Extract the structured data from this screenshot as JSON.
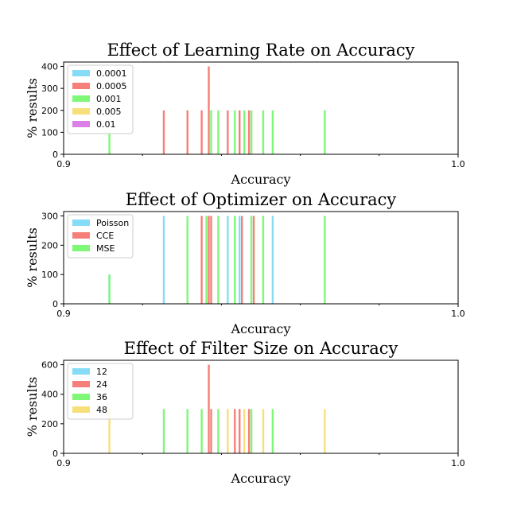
{
  "chart_data": [
    {
      "type": "bar",
      "title": "Effect of Learning Rate on Accuracy",
      "xlabel": "Accuracy",
      "ylabel": "% results",
      "xlim": [
        0.9,
        1.0
      ],
      "ylim": [
        0,
        420
      ],
      "xticks": [
        "0.9",
        "1.0"
      ],
      "yticks": [
        0,
        100,
        200,
        300,
        400
      ],
      "legend_position": "top-left",
      "series": [
        {
          "name": "0.0001",
          "color": "#86dcf7",
          "points": []
        },
        {
          "name": "0.0005",
          "color": "#f77f79",
          "points": [
            [
              0.9254,
              200
            ],
            [
              0.9314,
              200
            ],
            [
              0.935,
              200
            ],
            [
              0.9368,
              400
            ],
            [
              0.9416,
              200
            ],
            [
              0.9446,
              200
            ],
            [
              0.947,
              200
            ]
          ]
        },
        {
          "name": "0.001",
          "color": "#7ff777",
          "points": [
            [
              0.9116,
              100
            ],
            [
              0.9374,
              200
            ],
            [
              0.9392,
              200
            ],
            [
              0.9434,
              200
            ],
            [
              0.9458,
              200
            ],
            [
              0.9476,
              200
            ],
            [
              0.9506,
              200
            ],
            [
              0.953,
              200
            ],
            [
              0.9662,
              200
            ]
          ]
        },
        {
          "name": "0.005",
          "color": "#f7e07a",
          "points": []
        },
        {
          "name": "0.01",
          "color": "#dc7fe6",
          "points": []
        }
      ]
    },
    {
      "type": "bar",
      "title": "Effect of Optimizer on Accuracy",
      "xlabel": "Accuracy",
      "ylabel": "% results",
      "xlim": [
        0.9,
        1.0
      ],
      "ylim": [
        0,
        315
      ],
      "xticks": [
        "0.9",
        "1.0"
      ],
      "yticks": [
        0,
        100,
        200,
        300
      ],
      "legend_position": "top-left",
      "series": [
        {
          "name": "Poisson",
          "color": "#86dcf7",
          "points": [
            [
              0.9116,
              100
            ],
            [
              0.9254,
              300
            ],
            [
              0.9416,
              300
            ],
            [
              0.9446,
              300
            ],
            [
              0.953,
              300
            ]
          ]
        },
        {
          "name": "CCE",
          "color": "#f77f79",
          "points": [
            [
              0.935,
              300
            ],
            [
              0.9368,
              300
            ],
            [
              0.9374,
              300
            ],
            [
              0.9452,
              300
            ],
            [
              0.9482,
              300
            ]
          ]
        },
        {
          "name": "MSE",
          "color": "#7ff777",
          "points": [
            [
              0.9116,
              100
            ],
            [
              0.9314,
              300
            ],
            [
              0.9362,
              300
            ],
            [
              0.9392,
              300
            ],
            [
              0.9434,
              300
            ],
            [
              0.9476,
              300
            ],
            [
              0.9506,
              300
            ],
            [
              0.9662,
              300
            ]
          ]
        }
      ]
    },
    {
      "type": "bar",
      "title": "Effect of Filter Size on Accuracy",
      "xlabel": "Accuracy",
      "ylabel": "% results",
      "xlim": [
        0.9,
        1.0
      ],
      "ylim": [
        0,
        630
      ],
      "xticks": [
        "0.9",
        "1.0"
      ],
      "yticks": [
        0,
        200,
        400,
        600
      ],
      "legend_position": "top-left",
      "series": [
        {
          "name": "12",
          "color": "#86dcf7",
          "points": []
        },
        {
          "name": "24",
          "color": "#f77f79",
          "points": [
            [
              0.9368,
              600
            ],
            [
              0.9374,
              300
            ],
            [
              0.9434,
              300
            ],
            [
              0.9446,
              300
            ],
            [
              0.947,
              300
            ]
          ]
        },
        {
          "name": "36",
          "color": "#7ff777",
          "points": [
            [
              0.9254,
              300
            ],
            [
              0.9314,
              300
            ],
            [
              0.935,
              300
            ],
            [
              0.9392,
              300
            ],
            [
              0.9476,
              300
            ],
            [
              0.953,
              300
            ]
          ]
        },
        {
          "name": "48",
          "color": "#f7e07a",
          "points": [
            [
              0.9116,
              300
            ],
            [
              0.9416,
              300
            ],
            [
              0.9458,
              300
            ],
            [
              0.9506,
              300
            ],
            [
              0.9662,
              300
            ]
          ]
        }
      ]
    }
  ]
}
